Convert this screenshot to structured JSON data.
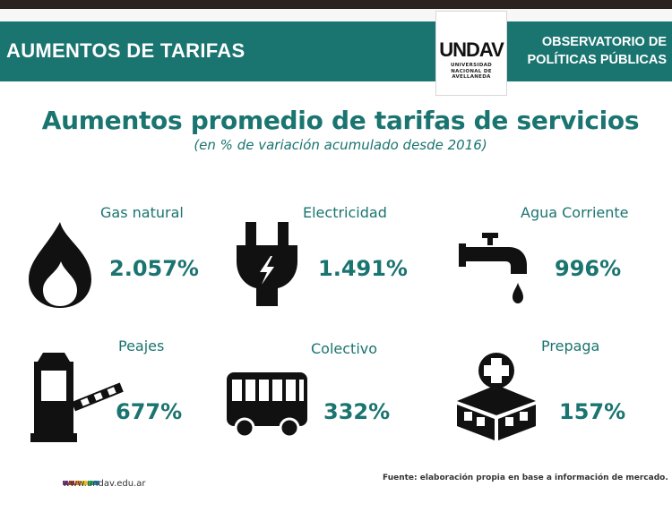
{
  "header": {
    "title": "AUMENTOS DE TARIFAS",
    "logo_text": "UNDAV",
    "logo_sub": [
      "UNIVERSIDAD",
      "NACIONAL DE",
      "AVELLANEDA"
    ],
    "observatory": [
      "OBSERVATORIO DE",
      "POLÍTICAS PÚBLICAS"
    ]
  },
  "main": {
    "title": "Aumentos promedio de tarifas de servicios",
    "subtitle": "(en % de variación acumulado desde 2016)"
  },
  "services": [
    {
      "label": "Gas natural",
      "value": "2.057%",
      "icon": "flame-icon"
    },
    {
      "label": "Electricidad",
      "value": "1.491%",
      "icon": "plug-icon"
    },
    {
      "label": "Agua Corriente",
      "value": "996%",
      "icon": "faucet-icon"
    },
    {
      "label": "Peajes",
      "value": "677%",
      "icon": "toll-barrier-icon"
    },
    {
      "label": "Colectivo",
      "value": "332%",
      "icon": "bus-icon"
    },
    {
      "label": "Prepaga",
      "value": "157%",
      "icon": "clinic-icon"
    }
  ],
  "footer": {
    "site": "www.undav.edu.ar",
    "source": "Fuente: elaboración propia en base a información de mercado.",
    "dot_colors": [
      "#8b3a8f",
      "#c0392b",
      "#e67e22",
      "#f1c40f",
      "#27ae60",
      "#2980b9"
    ]
  },
  "colors": {
    "accent": "#1a7470",
    "icon": "#111111"
  }
}
